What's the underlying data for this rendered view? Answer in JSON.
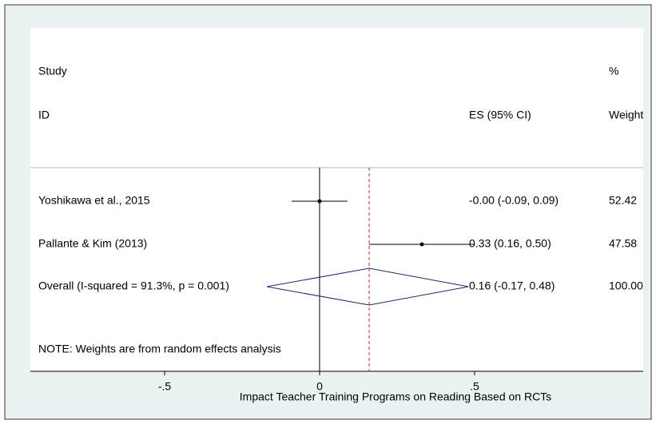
{
  "chart_data": {
    "type": "forest",
    "header": {
      "col1_top": "Study",
      "col1_bottom": "ID",
      "col2": "ES (95% CI)",
      "col3_top": "%",
      "col3_bottom": "Weight"
    },
    "studies": [
      {
        "name": "Yoshikawa et al., 2015",
        "es": 0,
        "lo": -0.09,
        "hi": 0.09,
        "es_label": "-0.00 (-0.09, 0.09)",
        "weight_label": "52.42"
      },
      {
        "name": "Pallante & Kim (2013)",
        "es": 0.33,
        "lo": 0.16,
        "hi": 0.5,
        "es_label": "0.33 (0.16, 0.50)",
        "weight_label": "47.58"
      }
    ],
    "overall": {
      "name": "Overall  (I-squared = 91.3%, p = 0.001)",
      "es": 0.16,
      "lo": -0.17,
      "hi": 0.48,
      "es_label": "0.16 (-0.17, 0.48)",
      "weight_label": "100.00",
      "color": "#1a2a6c"
    },
    "note": "NOTE: Weights are from random effects analysis",
    "xlabel": "Impact Teacher Training Programs on Reading Based on RCTs",
    "xlim": [
      -0.933,
      1.044
    ],
    "xticks": [
      {
        "value": -0.5,
        "label": "-.5"
      },
      0,
      {
        "value": 0.5,
        "label": ".5"
      }
    ]
  }
}
